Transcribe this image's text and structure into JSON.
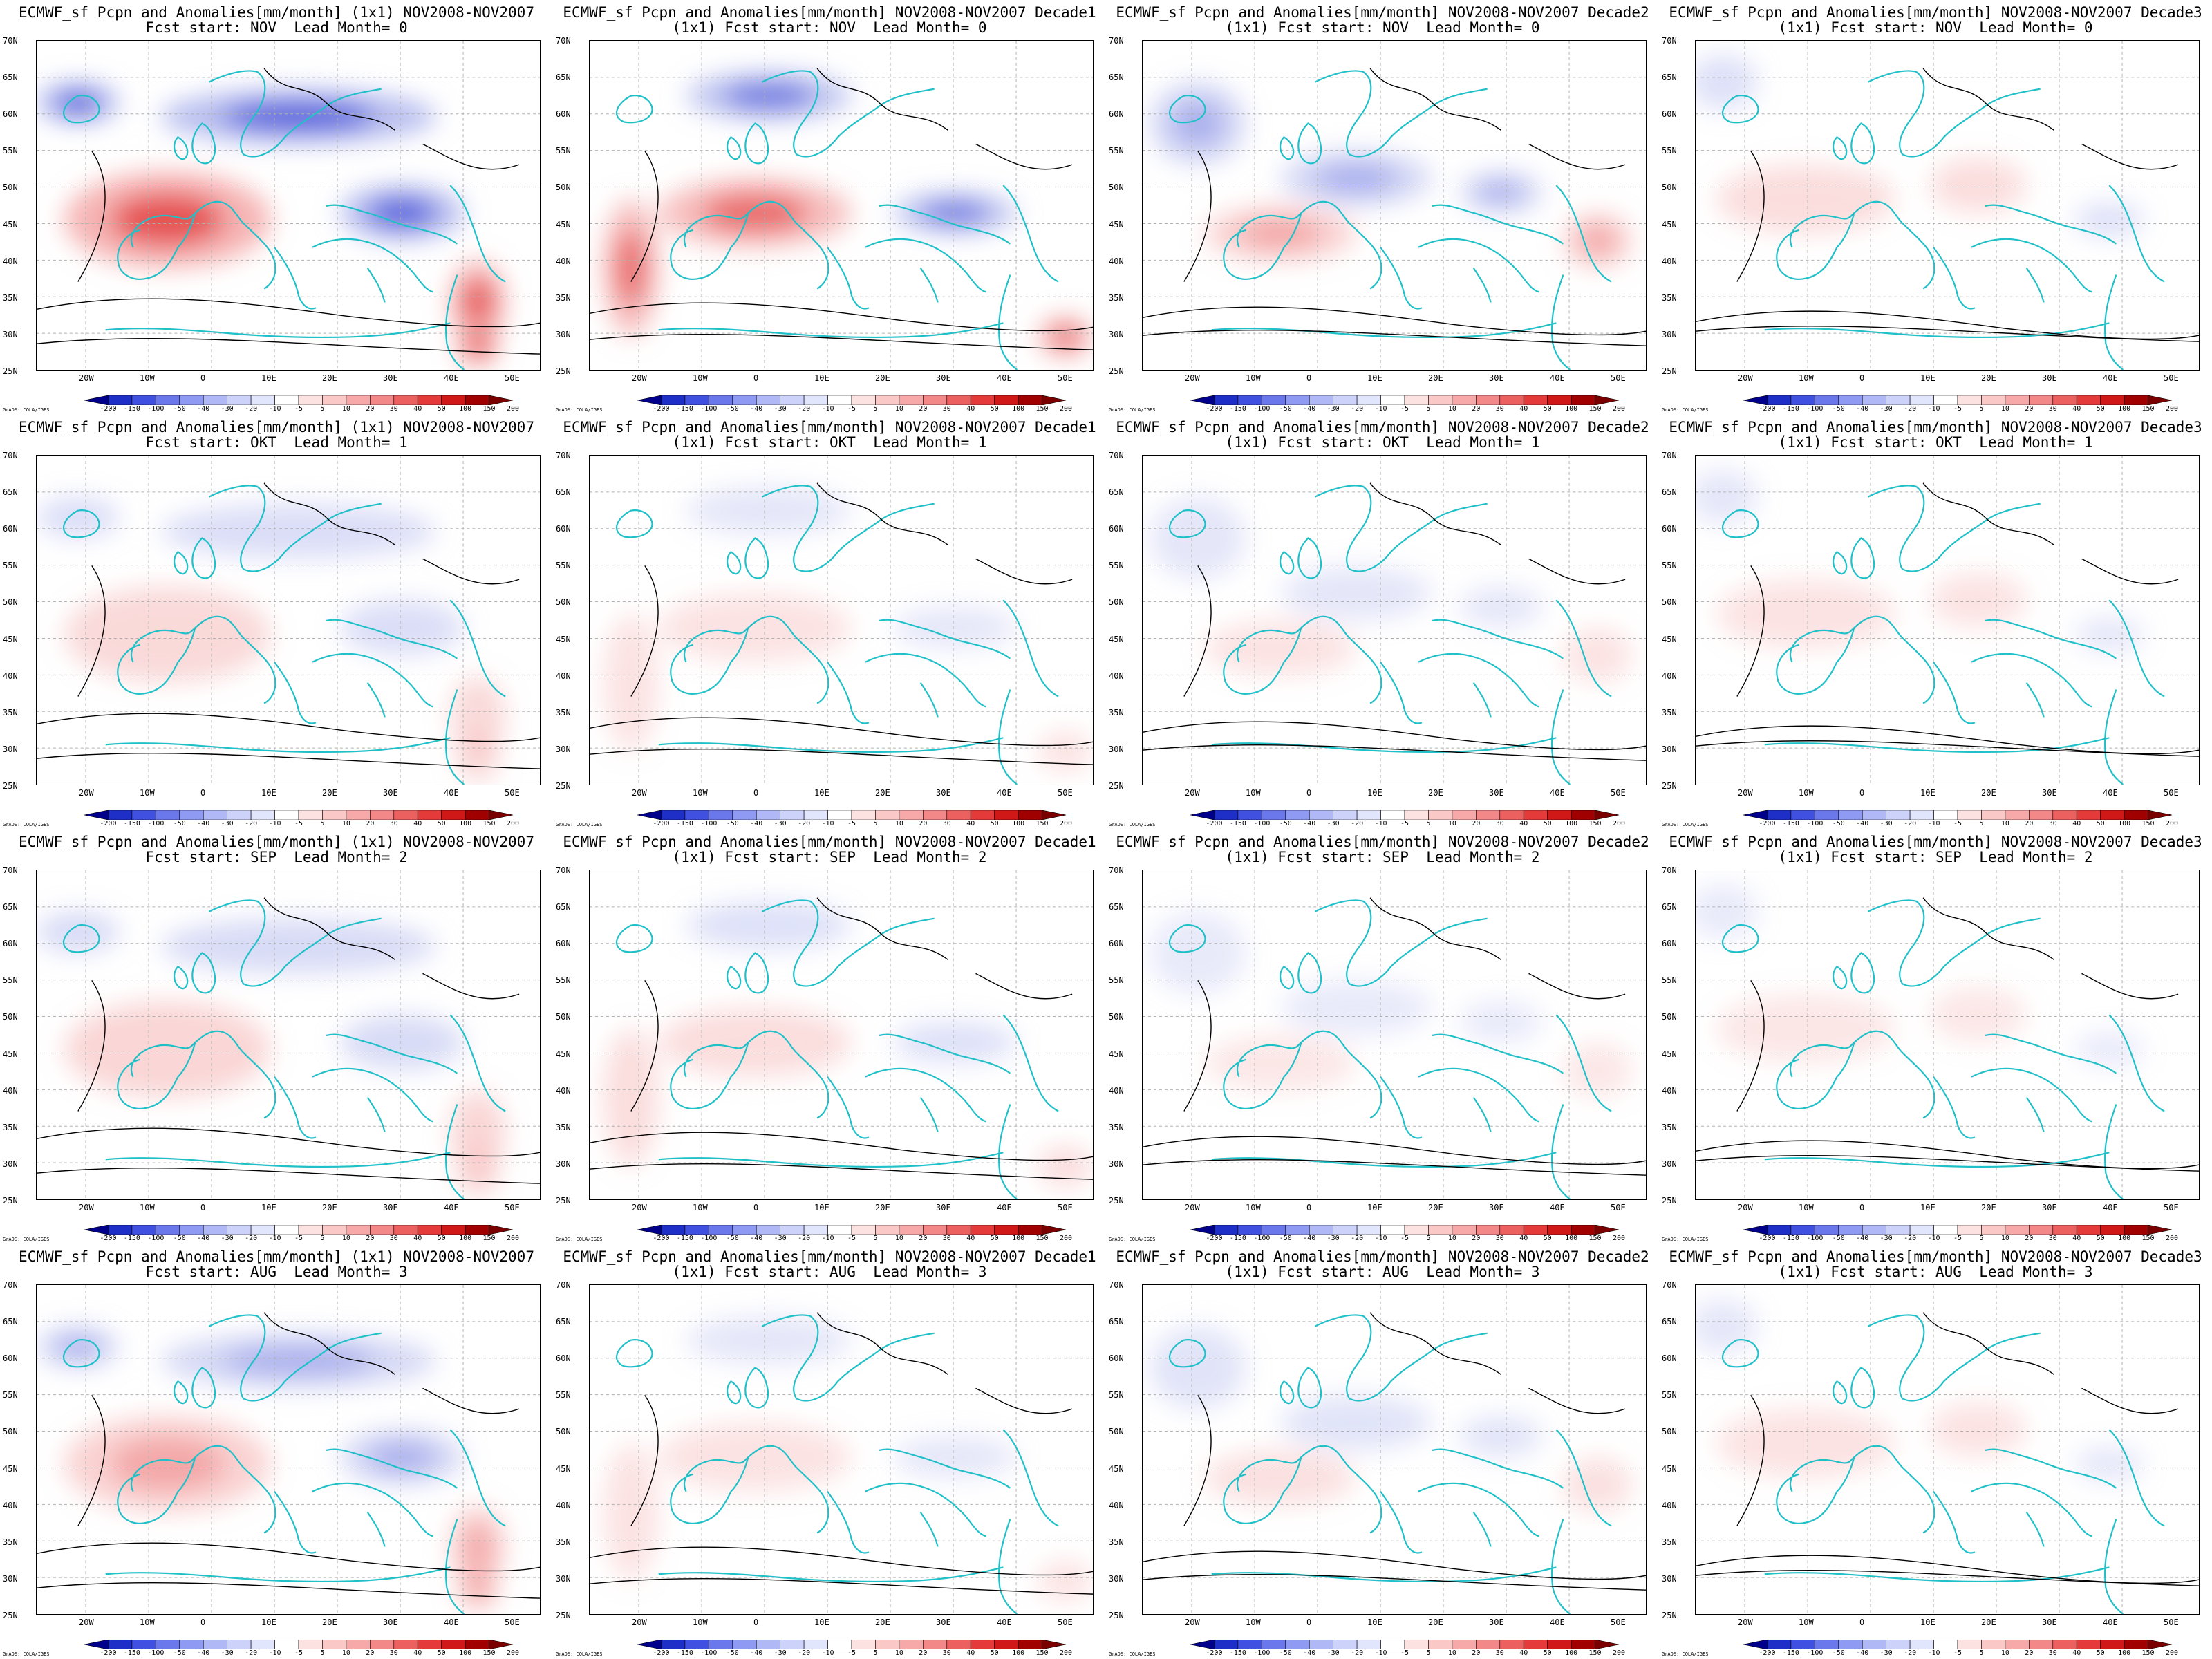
{
  "panels": [
    {
      "line1": "ECMWF_sf Pcpn and Anomalies[mm/month] (1x1) NOV2008-NOV2007",
      "line2": "Fcst start: NOV  Lead Month= 0",
      "variant": "full",
      "intensity": 1.0
    },
    {
      "line1": "ECMWF_sf Pcpn and Anomalies[mm/month] NOV2008-NOV2007 Decade1",
      "line2": "(1x1) Fcst start: NOV  Lead Month= 0",
      "variant": "d1",
      "intensity": 0.85
    },
    {
      "line1": "ECMWF_sf Pcpn and Anomalies[mm/month] NOV2008-NOV2007 Decade2",
      "line2": "(1x1) Fcst start: NOV  Lead Month= 0",
      "variant": "d2",
      "intensity": 0.55
    },
    {
      "line1": "ECMWF_sf Pcpn and Anomalies[mm/month] NOV2008-NOV2007 Decade3",
      "line2": "(1x1) Fcst start: NOV  Lead Month= 0",
      "variant": "d3",
      "intensity": 0.4
    },
    {
      "line1": "ECMWF_sf Pcpn and Anomalies[mm/month] (1x1) NOV2008-NOV2007",
      "line2": "Fcst start: OKT  Lead Month= 1",
      "variant": "full",
      "intensity": 0.45
    },
    {
      "line1": "ECMWF_sf Pcpn and Anomalies[mm/month] NOV2008-NOV2007 Decade1",
      "line2": "(1x1) Fcst start: OKT  Lead Month= 1",
      "variant": "d1",
      "intensity": 0.3
    },
    {
      "line1": "ECMWF_sf Pcpn and Anomalies[mm/month] NOV2008-NOV2007 Decade2",
      "line2": "(1x1) Fcst start: OKT  Lead Month= 1",
      "variant": "d2",
      "intensity": 0.3
    },
    {
      "line1": "ECMWF_sf Pcpn and Anomalies[mm/month] NOV2008-NOV2007 Decade3",
      "line2": "(1x1) Fcst start: OKT  Lead Month= 1",
      "variant": "d3",
      "intensity": 0.3
    },
    {
      "line1": "ECMWF_sf Pcpn and Anomalies[mm/month] (1x1) NOV2008-NOV2007",
      "line2": "Fcst start: SEP  Lead Month= 2",
      "variant": "full",
      "intensity": 0.5
    },
    {
      "line1": "ECMWF_sf Pcpn and Anomalies[mm/month] NOV2008-NOV2007 Decade1",
      "line2": "(1x1) Fcst start: SEP  Lead Month= 2",
      "variant": "d1",
      "intensity": 0.4
    },
    {
      "line1": "ECMWF_sf Pcpn and Anomalies[mm/month] NOV2008-NOV2007 Decade2",
      "line2": "(1x1) Fcst start: SEP  Lead Month= 2",
      "variant": "d2",
      "intensity": 0.25
    },
    {
      "line1": "ECMWF_sf Pcpn and Anomalies[mm/month] NOV2008-NOV2007 Decade3",
      "line2": "(1x1) Fcst start: SEP  Lead Month= 2",
      "variant": "d3",
      "intensity": 0.25
    },
    {
      "line1": "ECMWF_sf Pcpn and Anomalies[mm/month] (1x1) NOV2008-NOV2007",
      "line2": "Fcst start: AUG  Lead Month= 3",
      "variant": "full",
      "intensity": 0.55
    },
    {
      "line1": "ECMWF_sf Pcpn and Anomalies[mm/month] NOV2008-NOV2007 Decade1",
      "line2": "(1x1) Fcst start: AUG  Lead Month= 3",
      "variant": "d1",
      "intensity": 0.3
    },
    {
      "line1": "ECMWF_sf Pcpn and Anomalies[mm/month] NOV2008-NOV2007 Decade2",
      "line2": "(1x1) Fcst start: AUG  Lead Month= 3",
      "variant": "d2",
      "intensity": 0.35
    },
    {
      "line1": "ECMWF_sf Pcpn and Anomalies[mm/month] NOV2008-NOV2007 Decade3",
      "line2": "(1x1) Fcst start: AUG  Lead Month= 3",
      "variant": "d3",
      "intensity": 0.3
    }
  ],
  "lat_labels": [
    "70N",
    "65N",
    "60N",
    "55N",
    "50N",
    "45N",
    "40N",
    "35N",
    "30N",
    "25N"
  ],
  "lon_labels": [
    "20W",
    "10W",
    "0",
    "10E",
    "20E",
    "30E",
    "40E",
    "50E"
  ],
  "colorbar": {
    "labels": [
      "-200",
      "-150",
      "-100",
      "-50",
      "-40",
      "-30",
      "-20",
      "-10",
      "-5",
      "5",
      "10",
      "20",
      "30",
      "40",
      "50",
      "100",
      "150",
      "200"
    ],
    "colors": [
      "#00008b",
      "#1e2fc8",
      "#4050e0",
      "#6a78ec",
      "#8f9af2",
      "#b0b8f6",
      "#ccd2fa",
      "#e2e6fc",
      "#ffffff",
      "#fde2e2",
      "#fbc8c8",
      "#f7a8a8",
      "#f28888",
      "#ec6060",
      "#e43a3a",
      "#d01818",
      "#a00000",
      "#7a0000"
    ]
  },
  "credit": "GrADS: COLA/IGES",
  "colors": {
    "contour": "#000000",
    "coastline": "#20c0c8",
    "grid": "#b0b0b0"
  }
}
